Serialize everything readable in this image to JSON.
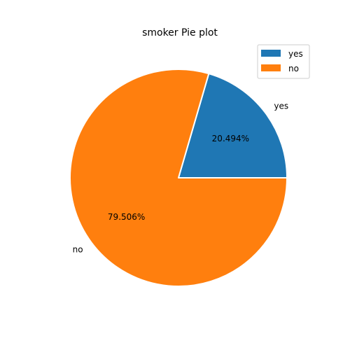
{
  "chart_data": {
    "type": "pie",
    "title": "smoker Pie plot",
    "slices": [
      {
        "label": "yes",
        "value": 20.494,
        "percent_label": "20.494%",
        "color": "#1f77b4"
      },
      {
        "label": "no",
        "value": 79.506,
        "percent_label": "79.506%",
        "color": "#ff7f0e"
      }
    ],
    "legend": {
      "placement": "top-right",
      "entries": [
        "yes",
        "no"
      ]
    },
    "start_angle_deg": 0,
    "direction": "counterclockwise"
  }
}
